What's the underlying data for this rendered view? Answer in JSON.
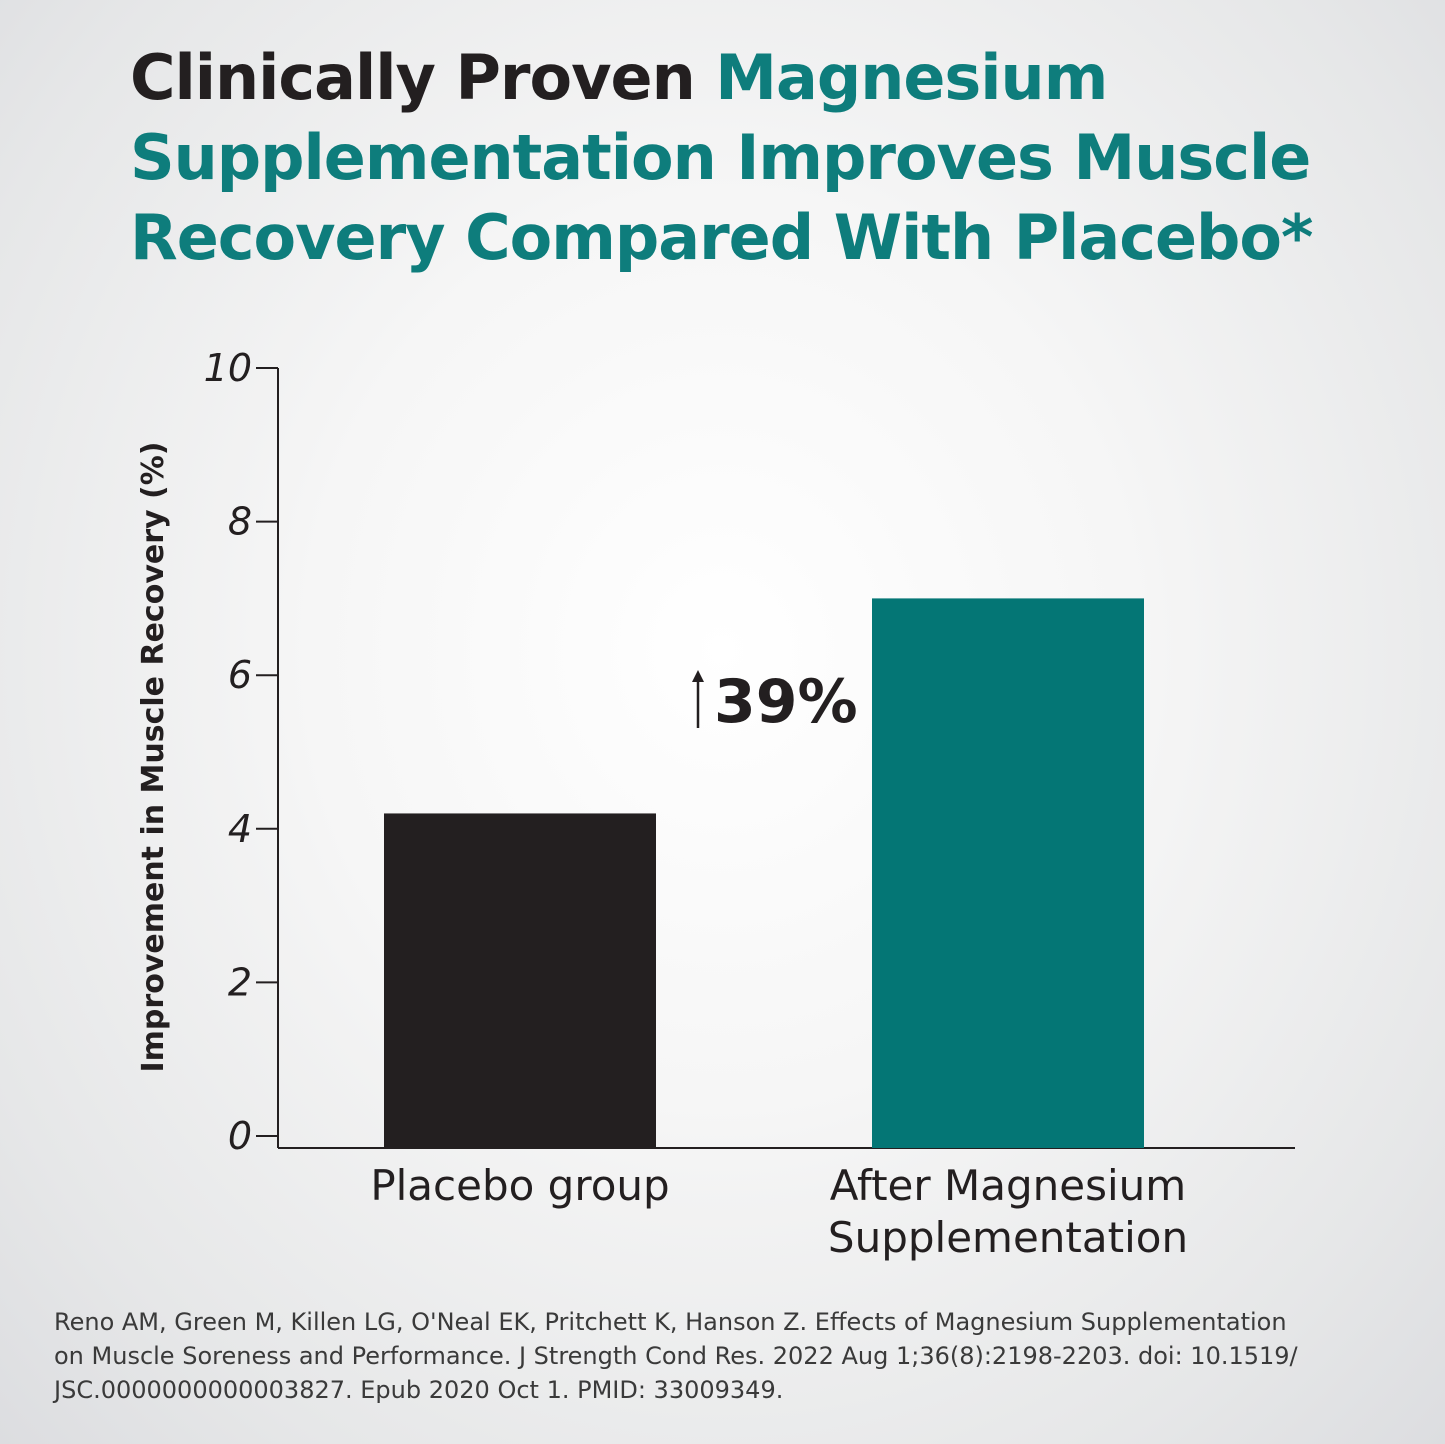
{
  "header": {
    "title_part1": "Clinically Proven ",
    "title_part2": "Magnesium Supplementation Improves Muscle Recovery Compared With Placebo*"
  },
  "colors": {
    "dark": "#231f20",
    "teal": "#047675",
    "title_teal": "#0e7d7c"
  },
  "chart_data": {
    "type": "bar",
    "categories": [
      [
        "Placebo group"
      ],
      [
        "After Magnesium",
        "Supplementation"
      ]
    ],
    "values": [
      4.2,
      7.0
    ],
    "bar_colors": [
      "#231f20",
      "#047675"
    ],
    "ylabel": "Improvement in Muscle Recovery (%)",
    "ylim": [
      0,
      10
    ],
    "yticks": [
      0,
      2,
      4,
      6,
      8,
      10
    ],
    "grid": false,
    "annotation": {
      "arrow": "↑",
      "text": "39%"
    }
  },
  "footer": {
    "citation_lines": [
      "Reno AM, Green M, Killen LG, O'Neal EK, Pritchett K, Hanson Z. Effects of Magnesium Supplementation",
      "on Muscle Soreness and Performance. J Strength Cond Res. 2022 Aug 1;36(8):2198-2203. doi: 10.1519/",
      "JSC.0000000000003827. Epub 2020 Oct 1. PMID: 33009349."
    ]
  }
}
